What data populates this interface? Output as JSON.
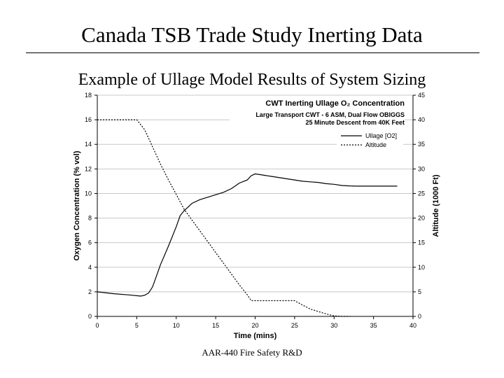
{
  "slide": {
    "title": "Canada TSB Trade Study Inerting Data",
    "subtitle": "Example of Ullage Model Results of System Sizing",
    "footer": "AAR-440 Fire Safety R&D"
  },
  "chart_data": {
    "type": "line",
    "title": "CWT Inerting Ullage O₂ Concentration",
    "subtitle_lines": [
      "Large Transport CWT - 6 ASM, Dual Flow OBIGGS",
      "25 Minute Descent from 40K Feet"
    ],
    "xlabel": "Time (mins)",
    "ylabel": "Oxygen Concentration (% vol)",
    "y2label": "Altitude (1000 Ft)",
    "xlim": [
      0,
      40
    ],
    "ylim": [
      0,
      18
    ],
    "y2lim": [
      0,
      45
    ],
    "x_ticks": [
      0,
      5,
      10,
      15,
      20,
      25,
      30,
      35,
      40
    ],
    "y_ticks": [
      0,
      2,
      4,
      6,
      8,
      10,
      12,
      14,
      16,
      18
    ],
    "y2_ticks": [
      0,
      5,
      10,
      15,
      20,
      25,
      30,
      35,
      40,
      45
    ],
    "grid": true,
    "legend_position": "top-right",
    "series": [
      {
        "name": "Ullage [O2]",
        "axis": "left",
        "style": "solid",
        "color": "#000000",
        "x": [
          0,
          2,
          4,
          5.5,
          6,
          6.5,
          7,
          7.5,
          8,
          9,
          10,
          10.5,
          11,
          11.5,
          12,
          13,
          14,
          15,
          16,
          17,
          18,
          19,
          19.5,
          20,
          21,
          22,
          23,
          24,
          25,
          26,
          27,
          28,
          29,
          30,
          31,
          32,
          33,
          34,
          35,
          36,
          37,
          38
        ],
        "y": [
          2.0,
          1.85,
          1.75,
          1.65,
          1.72,
          1.9,
          2.4,
          3.3,
          4.2,
          5.7,
          7.3,
          8.2,
          8.6,
          8.9,
          9.2,
          9.5,
          9.7,
          9.9,
          10.1,
          10.4,
          10.85,
          11.1,
          11.45,
          11.6,
          11.5,
          11.4,
          11.3,
          11.2,
          11.1,
          11.0,
          10.95,
          10.9,
          10.8,
          10.75,
          10.65,
          10.62,
          10.6,
          10.6,
          10.6,
          10.6,
          10.6,
          10.6
        ]
      },
      {
        "name": "Altitude",
        "axis": "right",
        "style": "dotted",
        "color": "#000000",
        "x": [
          0,
          5,
          6,
          7,
          8,
          9,
          10,
          11,
          12,
          13,
          14,
          15,
          16,
          17,
          18,
          19,
          19.5,
          20,
          22,
          24,
          25,
          26,
          27,
          28,
          29,
          30,
          31,
          32
        ],
        "y": [
          40,
          40,
          38,
          34.5,
          31,
          27.8,
          24.8,
          21.8,
          19.6,
          17.4,
          15.2,
          13,
          10.8,
          8.6,
          6.4,
          4.4,
          3.2,
          3.2,
          3.2,
          3.2,
          3.2,
          2.3,
          1.5,
          1.0,
          0.5,
          0.1,
          0,
          0
        ]
      }
    ]
  }
}
